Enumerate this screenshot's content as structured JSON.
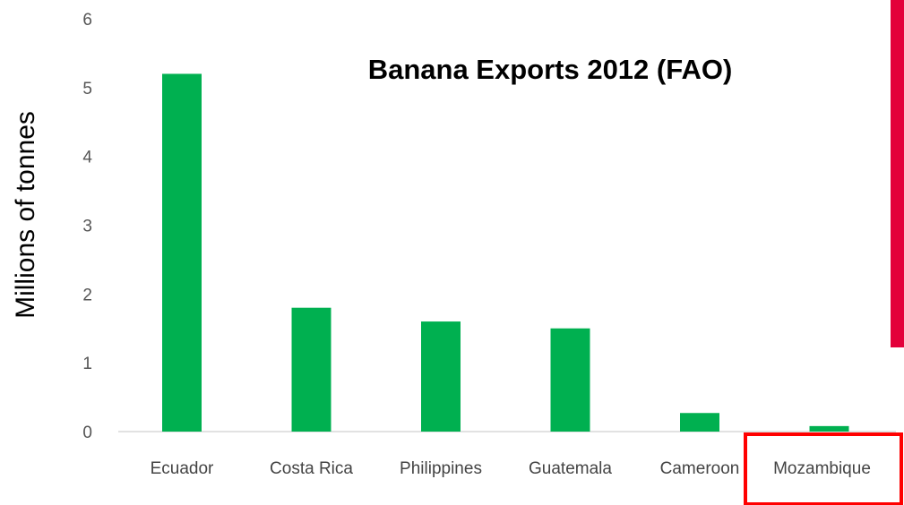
{
  "chart_data": {
    "type": "bar",
    "title": "Banana Exports 2012 (FAO)",
    "xlabel": "",
    "ylabel": "Millions of tonnes",
    "categories": [
      "Ecuador",
      "Costa Rica",
      "Philippines",
      "Guatemala",
      "Cameroon",
      "Mozambique"
    ],
    "values": [
      5.2,
      1.8,
      1.6,
      1.5,
      0.27,
      0.08
    ],
    "ylim": [
      0,
      6
    ],
    "yticks": [
      "0",
      "1",
      "2",
      "3",
      "4",
      "5",
      "6"
    ],
    "grid": false,
    "legend": "none",
    "highlighted_category": "Mozambique"
  },
  "colors": {
    "bar": "#00b050",
    "highlight_box": "#ff0000",
    "accent_bar": "#e3003a",
    "axis": "#d9d9d9"
  }
}
